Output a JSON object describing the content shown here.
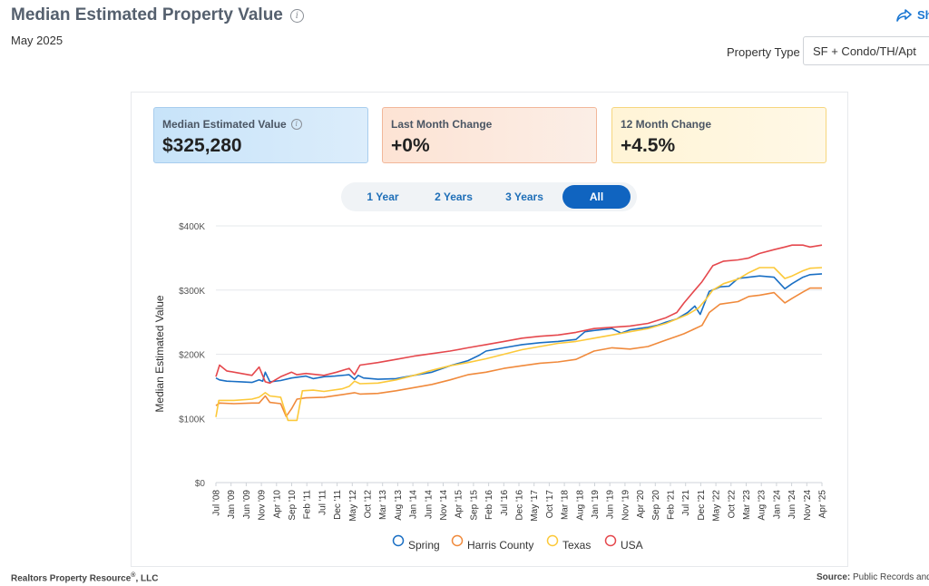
{
  "header": {
    "title": "Median Estimated Property Value",
    "subtitle": "May 2025",
    "share_label": "Sh"
  },
  "filter": {
    "label": "Property Type",
    "value": "SF + Condo/TH/Apt"
  },
  "cards": [
    {
      "label": "Median Estimated Value",
      "value": "$325,280"
    },
    {
      "label": "Last Month Change",
      "value": "+0%"
    },
    {
      "label": "12 Month Change",
      "value": "+4.5%"
    }
  ],
  "tabs": [
    {
      "label": "1 Year",
      "active": false
    },
    {
      "label": "2 Years",
      "active": false
    },
    {
      "label": "3 Years",
      "active": false
    },
    {
      "label": "All",
      "active": true
    }
  ],
  "footer": {
    "left": "Realtors Property Resource",
    "left_mark": "®",
    "left_suffix": ", LLC",
    "source_label": "Source:",
    "source_text": "Public Records and"
  },
  "chart_data": {
    "type": "line",
    "ylabel": "Median Estimated Value",
    "ylim": [
      0,
      400000
    ],
    "yticks": [
      "$0",
      "$100K",
      "$200K",
      "$300K",
      "$400K"
    ],
    "xrange": [
      2008.5,
      2025.33
    ],
    "xticks": [
      "Jul '08",
      "Jan '09",
      "Jun '09",
      "Nov '09",
      "Apr '10",
      "Sep '10",
      "Feb '11",
      "Jul '11",
      "Dec '11",
      "May '12",
      "Oct '12",
      "Mar '13",
      "Aug '13",
      "Jan '14",
      "Jun '14",
      "Nov '14",
      "Apr '15",
      "Sep '15",
      "Feb '16",
      "Jul '16",
      "Dec '16",
      "May '17",
      "Oct '17",
      "Mar '18",
      "Aug '18",
      "Jan '19",
      "Jun '19",
      "Nov '19",
      "Apr '20",
      "Sep '20",
      "Feb '21",
      "Jul '21",
      "Dec '21",
      "May '22",
      "Oct '22",
      "Mar '23",
      "Aug '23",
      "Jan '24",
      "Jun '24",
      "Nov '24",
      "Apr '25"
    ],
    "legend_position": "bottom",
    "series": [
      {
        "name": "Spring",
        "color": "#1a6fc4",
        "x": [
          2008.5,
          2008.6,
          2008.8,
          2009.2,
          2009.5,
          2009.7,
          2009.8,
          2009.87,
          2010.0,
          2010.3,
          2010.6,
          2011.0,
          2011.2,
          2011.5,
          2011.8,
          2012.2,
          2012.35,
          2012.45,
          2012.6,
          2013.0,
          2013.5,
          2014.0,
          2014.5,
          2015.0,
          2015.5,
          2015.8,
          2016.0,
          2016.5,
          2017.0,
          2017.5,
          2018.0,
          2018.5,
          2018.75,
          2019.0,
          2019.5,
          2019.75,
          2020.0,
          2020.5,
          2020.75,
          2021.0,
          2021.3,
          2021.6,
          2021.8,
          2021.95,
          2022.2,
          2022.5,
          2022.75,
          2023.0,
          2023.3,
          2023.6,
          2024.0,
          2024.3,
          2024.5,
          2024.8,
          2025.0,
          2025.33
        ],
        "y": [
          163000,
          160000,
          158000,
          157000,
          156000,
          160000,
          158000,
          172000,
          157000,
          159000,
          163000,
          166000,
          162000,
          165000,
          166000,
          168000,
          161000,
          167000,
          163000,
          161000,
          162000,
          167000,
          172000,
          182000,
          190000,
          198000,
          205000,
          210000,
          215000,
          218000,
          220000,
          223000,
          235000,
          237000,
          240000,
          233000,
          238000,
          242000,
          245000,
          250000,
          255000,
          265000,
          275000,
          262000,
          298000,
          305000,
          306000,
          318000,
          320000,
          322000,
          320000,
          302000,
          310000,
          320000,
          324000,
          325280
        ]
      },
      {
        "name": "Harris County",
        "color": "#f08a3c",
        "x": [
          2008.5,
          2008.6,
          2009.0,
          2009.5,
          2009.7,
          2009.87,
          2010.0,
          2010.3,
          2010.45,
          2010.6,
          2010.75,
          2011.0,
          2011.5,
          2012.0,
          2012.35,
          2012.5,
          2013.0,
          2013.5,
          2014.0,
          2014.5,
          2015.0,
          2015.5,
          2016.0,
          2016.5,
          2017.0,
          2017.5,
          2018.0,
          2018.5,
          2019.0,
          2019.5,
          2020.0,
          2020.5,
          2021.0,
          2021.3,
          2021.5,
          2022.0,
          2022.2,
          2022.5,
          2023.0,
          2023.3,
          2023.6,
          2024.0,
          2024.3,
          2024.5,
          2024.8,
          2025.0,
          2025.33
        ],
        "y": [
          120000,
          124000,
          123000,
          124000,
          124000,
          135000,
          125000,
          123000,
          103000,
          115000,
          130000,
          132000,
          133000,
          137000,
          140000,
          138000,
          139000,
          143000,
          148000,
          153000,
          160000,
          168000,
          172000,
          178000,
          182000,
          186000,
          188000,
          192000,
          205000,
          210000,
          208000,
          212000,
          222000,
          228000,
          232000,
          245000,
          265000,
          278000,
          282000,
          290000,
          292000,
          296000,
          280000,
          287000,
          297000,
          303000,
          303000
        ]
      },
      {
        "name": "Texas",
        "color": "#fcc93a",
        "x": [
          2008.5,
          2008.58,
          2009.0,
          2009.5,
          2009.7,
          2009.87,
          2010.0,
          2010.3,
          2010.5,
          2010.75,
          2010.9,
          2011.2,
          2011.5,
          2012.0,
          2012.2,
          2012.35,
          2012.5,
          2013.0,
          2013.5,
          2014.0,
          2014.5,
          2015.0,
          2015.5,
          2016.0,
          2016.5,
          2017.0,
          2017.5,
          2018.0,
          2018.5,
          2019.0,
          2019.5,
          2020.0,
          2020.5,
          2021.0,
          2021.3,
          2021.6,
          2021.9,
          2022.1,
          2022.3,
          2022.6,
          2023.0,
          2023.3,
          2023.6,
          2024.0,
          2024.3,
          2024.5,
          2024.8,
          2025.0,
          2025.33
        ],
        "y": [
          102000,
          128000,
          128000,
          130000,
          133000,
          140000,
          135000,
          133000,
          97000,
          97000,
          143000,
          144000,
          142000,
          146000,
          150000,
          158000,
          154000,
          155000,
          160000,
          167000,
          175000,
          182000,
          187000,
          193000,
          200000,
          207000,
          212000,
          217000,
          220000,
          225000,
          230000,
          235000,
          240000,
          248000,
          255000,
          262000,
          272000,
          285000,
          300000,
          310000,
          317000,
          327000,
          335000,
          335000,
          318000,
          322000,
          330000,
          334000,
          335000
        ]
      },
      {
        "name": "USA",
        "color": "#e5484d",
        "x": [
          2008.5,
          2008.6,
          2008.8,
          2009.2,
          2009.5,
          2009.7,
          2009.87,
          2010.0,
          2010.3,
          2010.6,
          2010.75,
          2011.0,
          2011.5,
          2011.85,
          2012.2,
          2012.35,
          2012.5,
          2013.0,
          2013.5,
          2014.0,
          2014.5,
          2015.0,
          2015.5,
          2016.0,
          2016.5,
          2017.0,
          2017.5,
          2018.0,
          2018.5,
          2019.0,
          2019.5,
          2020.0,
          2020.5,
          2021.0,
          2021.3,
          2021.5,
          2021.8,
          2022.0,
          2022.3,
          2022.6,
          2023.0,
          2023.3,
          2023.6,
          2024.0,
          2024.3,
          2024.5,
          2024.8,
          2025.0,
          2025.33
        ],
        "y": [
          165000,
          183000,
          174000,
          170000,
          167000,
          180000,
          157000,
          155000,
          165000,
          172000,
          168000,
          170000,
          167000,
          172000,
          178000,
          168000,
          183000,
          187000,
          192000,
          197000,
          201000,
          205000,
          210000,
          215000,
          220000,
          225000,
          228000,
          230000,
          234000,
          240000,
          242000,
          244000,
          248000,
          257000,
          265000,
          280000,
          300000,
          313000,
          338000,
          345000,
          347000,
          350000,
          357000,
          363000,
          367000,
          370000,
          370000,
          367000,
          370000
        ]
      }
    ]
  }
}
